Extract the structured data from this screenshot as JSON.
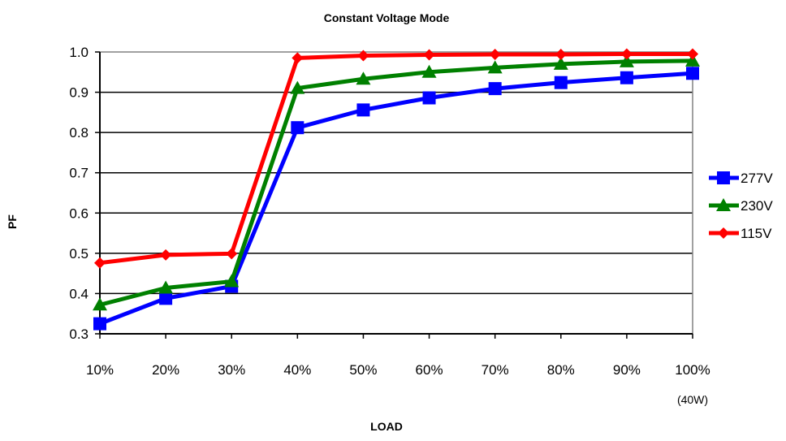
{
  "chart_data": {
    "type": "line",
    "title": "Constant Voltage Mode",
    "xlabel": "LOAD",
    "ylabel": "PF",
    "categories": [
      "10%",
      "20%",
      "30%",
      "40%",
      "50%",
      "60%",
      "70%",
      "80%",
      "90%",
      "100%"
    ],
    "category_note": "(40W)",
    "ylim": [
      0.3,
      1.0
    ],
    "yticks": [
      "0.3",
      "0.4",
      "0.5",
      "0.6",
      "0.7",
      "0.8",
      "0.9",
      "1.0"
    ],
    "grid": true,
    "legend_position": "right",
    "series": [
      {
        "name": "277V",
        "color": "#0000ff",
        "marker": "square",
        "values": [
          0.325,
          0.388,
          0.418,
          0.812,
          0.856,
          0.886,
          0.909,
          0.924,
          0.936,
          0.947
        ]
      },
      {
        "name": "230V",
        "color": "#008000",
        "marker": "triangle",
        "values": [
          0.372,
          0.414,
          0.43,
          0.91,
          0.933,
          0.95,
          0.961,
          0.97,
          0.976,
          0.978
        ]
      },
      {
        "name": "115V",
        "color": "#ff0000",
        "marker": "diamond",
        "values": [
          0.476,
          0.496,
          0.499,
          0.985,
          0.991,
          0.993,
          0.994,
          0.994,
          0.995,
          0.995
        ]
      }
    ]
  }
}
